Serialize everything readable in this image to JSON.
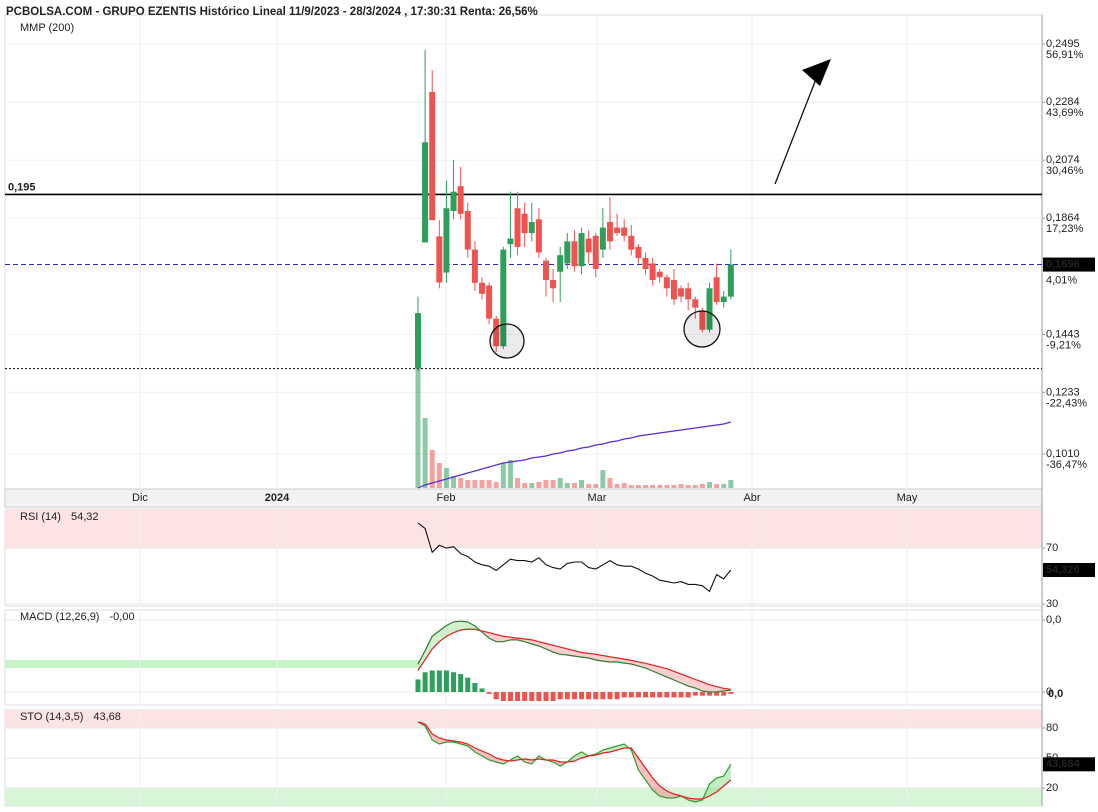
{
  "header": "PCBOLSA.COM - GRUPO EZENTIS Histórico Lineal 11/9/2023 - 28/3/2024 , 17:30:31 Renta: 26,56%",
  "chart_data": [
    {
      "type": "candlestick",
      "open": [
        0.132,
        0.1776,
        0.2321,
        0.1798,
        0.1667,
        0.189,
        0.198,
        0.189,
        0.175,
        0.163,
        0.162,
        0.15,
        0.14,
        0.177,
        0.19,
        0.188,
        0.181,
        0.186,
        0.171,
        0.164,
        0.167,
        0.17,
        0.178,
        0.169,
        0.179,
        0.18,
        0.175,
        0.185,
        0.183,
        0.183,
        0.18,
        0.176,
        0.172,
        0.17,
        0.167,
        0.165,
        0.164,
        0.161,
        0.161,
        0.157,
        0.153,
        0.146,
        0.165,
        0.156,
        0.158
      ],
      "high": [
        0.158,
        0.2473,
        0.24,
        0.1857,
        0.2,
        0.2074,
        0.205,
        0.192,
        0.178,
        0.165,
        0.163,
        0.151,
        0.176,
        0.196,
        0.196,
        0.192,
        0.192,
        0.19,
        0.172,
        0.168,
        0.176,
        0.181,
        0.182,
        0.183,
        0.182,
        0.181,
        0.19,
        0.194,
        0.188,
        0.186,
        0.184,
        0.177,
        0.174,
        0.172,
        0.168,
        0.166,
        0.168,
        0.162,
        0.163,
        0.158,
        0.154,
        0.163,
        0.17,
        0.16,
        0.175
      ],
      "low": [
        0.131,
        0.1776,
        0.1857,
        0.161,
        0.163,
        0.186,
        0.186,
        0.172,
        0.16,
        0.157,
        0.148,
        0.138,
        0.139,
        0.172,
        0.173,
        0.176,
        0.178,
        0.172,
        0.158,
        0.156,
        0.156,
        0.168,
        0.167,
        0.166,
        0.17,
        0.165,
        0.172,
        0.175,
        0.18,
        0.178,
        0.173,
        0.17,
        0.166,
        0.162,
        0.163,
        0.158,
        0.155,
        0.156,
        0.153,
        0.15,
        0.145,
        0.145,
        0.155,
        0.154,
        0.157
      ],
      "close": [
        0.152,
        0.2139,
        0.1857,
        0.1631,
        0.19,
        0.196,
        0.188,
        0.175,
        0.163,
        0.159,
        0.15,
        0.14,
        0.175,
        0.179,
        0.176,
        0.181,
        0.185,
        0.174,
        0.164,
        0.161,
        0.173,
        0.178,
        0.169,
        0.181,
        0.174,
        0.168,
        0.183,
        0.178,
        0.181,
        0.18,
        0.175,
        0.172,
        0.168,
        0.164,
        0.165,
        0.161,
        0.157,
        0.158,
        0.157,
        0.154,
        0.146,
        0.161,
        0.156,
        0.158,
        0.1696
      ],
      "up_color": "#2e9e5b",
      "down_color": "#ef5350",
      "ylim": [
        0.0883,
        0.26
      ],
      "yticks": [
        {
          "value": 0.2495,
          "label": "0,2495"
        },
        {
          "value": 0.2284,
          "label": "0,2284"
        },
        {
          "value": 0.2074,
          "label": "0,2074"
        },
        {
          "value": 0.1864,
          "label": "0,1864"
        },
        {
          "value": 0.1443,
          "label": "0,1443"
        },
        {
          "value": 0.1233,
          "label": "0,1233"
        },
        {
          "value": 0.101,
          "label": "0,1010"
        }
      ],
      "ytick_returns": [
        {
          "value": 56.91,
          "label": "56,91%"
        },
        {
          "value": 43.69,
          "label": "43,69%"
        },
        {
          "value": 30.46,
          "label": "30,46%"
        },
        {
          "value": 17.23,
          "label": "17,23%"
        },
        {
          "value": -9.21,
          "label": "-9,21%"
        },
        {
          "value": -22.43,
          "label": "-22,43%"
        },
        {
          "value": -36.47,
          "label": "-36,47%"
        }
      ],
      "x_labels": [
        "Dic",
        "2024",
        "Feb",
        "Mar",
        "Abr",
        "May"
      ],
      "lines": [
        {
          "value": 0.195,
          "label": "0,195",
          "style": "solid",
          "color": "#000000"
        },
        {
          "value": 0.1696,
          "label": "0,1696",
          "style": "dashed",
          "color": "#2a2ac8",
          "return": {
            "value": 4.01,
            "label": "4,01%"
          }
        },
        {
          "value": 0.1319,
          "style": "dotted",
          "color": "#000000"
        }
      ],
      "volume": [
        120,
        70,
        38,
        25,
        20,
        12,
        10,
        8,
        8,
        8,
        8,
        6,
        25,
        28,
        10,
        5,
        5,
        6,
        8,
        8,
        10,
        5,
        5,
        8,
        4,
        4,
        18,
        10,
        4,
        5,
        3,
        3,
        3,
        3,
        3,
        3,
        3,
        4,
        3,
        3,
        4,
        6,
        4,
        4,
        8
      ],
      "volume_ma": {
        "name": "MMP (200)",
        "color": "#5b2bd4",
        "values": [
          0,
          3,
          5,
          7,
          9,
          11,
          13,
          15,
          17,
          19,
          21,
          23,
          25,
          26,
          27,
          28,
          30,
          31,
          32,
          34,
          35,
          37,
          38,
          40,
          41,
          43,
          44,
          46,
          47,
          49,
          50,
          52,
          53,
          54,
          55,
          56,
          57,
          58,
          59,
          60,
          61,
          62,
          63,
          64,
          66
        ]
      }
    },
    {
      "type": "line",
      "title": "RSI (14)",
      "title_value": "54,32",
      "color": "#111111",
      "values": [
        88,
        84,
        67,
        72,
        70,
        71,
        66,
        64,
        60,
        58,
        57,
        54,
        58,
        62,
        61,
        61,
        60,
        63,
        58,
        56,
        55,
        59,
        60,
        60,
        56,
        55,
        58,
        61,
        58,
        57,
        57,
        55,
        52,
        50,
        47,
        46,
        45,
        46,
        44,
        44,
        43,
        39,
        51,
        48,
        54.32
      ],
      "ylim": [
        28.6,
        97.9
      ],
      "yticks": [
        70,
        30
      ],
      "value_box": {
        "value": 54.32,
        "label": "54,320"
      }
    },
    {
      "type": "macd",
      "title": "MACD (12,26,9)",
      "title_value": "-0,00",
      "series": [
        {
          "color": "#2f7d2f",
          "values": [
            0.0156,
            0.023,
            0.031,
            0.034,
            0.037,
            0.039,
            0.0394,
            0.039,
            0.0367,
            0.0333,
            0.03,
            0.028,
            0.028,
            0.029,
            0.029,
            0.028,
            0.0267,
            0.0256,
            0.0239,
            0.0222,
            0.021,
            0.0206,
            0.02,
            0.0194,
            0.0189,
            0.0178,
            0.0172,
            0.0167,
            0.0167,
            0.0161,
            0.0156,
            0.0144,
            0.0133,
            0.0117,
            0.01,
            0.0083,
            0.0067,
            0.005,
            0.0033,
            0.0022,
            0.0006,
            0,
            0,
            0.0006,
            0.0011
          ]
        },
        {
          "color": "#e02020",
          "values": [
            0.012,
            0.018,
            0.024,
            0.028,
            0.031,
            0.033,
            0.0345,
            0.035,
            0.0348,
            0.034,
            0.033,
            0.032,
            0.031,
            0.0305,
            0.03,
            0.0295,
            0.029,
            0.028,
            0.027,
            0.026,
            0.025,
            0.024,
            0.023,
            0.022,
            0.0215,
            0.021,
            0.0203,
            0.0196,
            0.019,
            0.0183,
            0.0176,
            0.0168,
            0.016,
            0.015,
            0.014,
            0.013,
            0.0115,
            0.01,
            0.0085,
            0.007,
            0.0055,
            0.004,
            0.003,
            0.002,
            0.0015
          ]
        }
      ],
      "histogram": [
        0.007,
        0.011,
        0.012,
        0.012,
        0.012,
        0.011,
        0.01,
        0.008,
        0.005,
        0.002,
        -0.001,
        -0.004,
        -0.005,
        -0.005,
        -0.005,
        -0.005,
        -0.005,
        -0.005,
        -0.005,
        -0.005,
        -0.004,
        -0.004,
        -0.004,
        -0.004,
        -0.004,
        -0.004,
        -0.004,
        -0.004,
        -0.004,
        -0.003,
        -0.003,
        -0.003,
        -0.003,
        -0.003,
        -0.003,
        -0.003,
        -0.003,
        -0.003,
        -0.003,
        -0.002,
        -0.002,
        -0.002,
        -0.002,
        -0.002,
        -0.001
      ],
      "up_color": "#2e9e5b",
      "down_color": "#ef5350",
      "ylim": [
        -0.0072,
        0.0456
      ],
      "yticks": [
        {
          "value": 0.04,
          "label": "0,0"
        },
        0
      ],
      "value_box": {
        "value": 0,
        "label": "0,0"
      }
    },
    {
      "type": "line",
      "title": "STO (14,3,5)",
      "title_value": "43,68",
      "series": [
        {
          "color": "#2f9e2f",
          "values": [
            86,
            82,
            68,
            64,
            66,
            66,
            64,
            62,
            56,
            52,
            48,
            46,
            44,
            48,
            52,
            46,
            44,
            52,
            48,
            46,
            42,
            46,
            52,
            56,
            52,
            54,
            58,
            60,
            62,
            64,
            58,
            38,
            28,
            18,
            12,
            10,
            10,
            12,
            8,
            6,
            8,
            24,
            30,
            32,
            43.684
          ]
        },
        {
          "color": "#e02020",
          "values": [
            86,
            84,
            74,
            70,
            68,
            67,
            66,
            64,
            60,
            57,
            54,
            50,
            48,
            47,
            48,
            49,
            48,
            49,
            48,
            48,
            46,
            46,
            47,
            50,
            52,
            53,
            55,
            56,
            58,
            60,
            60,
            50,
            40,
            30,
            22,
            17,
            14,
            12,
            10,
            9,
            9,
            12,
            16,
            22,
            28
          ]
        }
      ],
      "ylim": [
        2,
        98
      ],
      "yticks": [
        80,
        50,
        20
      ],
      "value_box": {
        "value": 43.684,
        "label": "43,684"
      }
    }
  ]
}
